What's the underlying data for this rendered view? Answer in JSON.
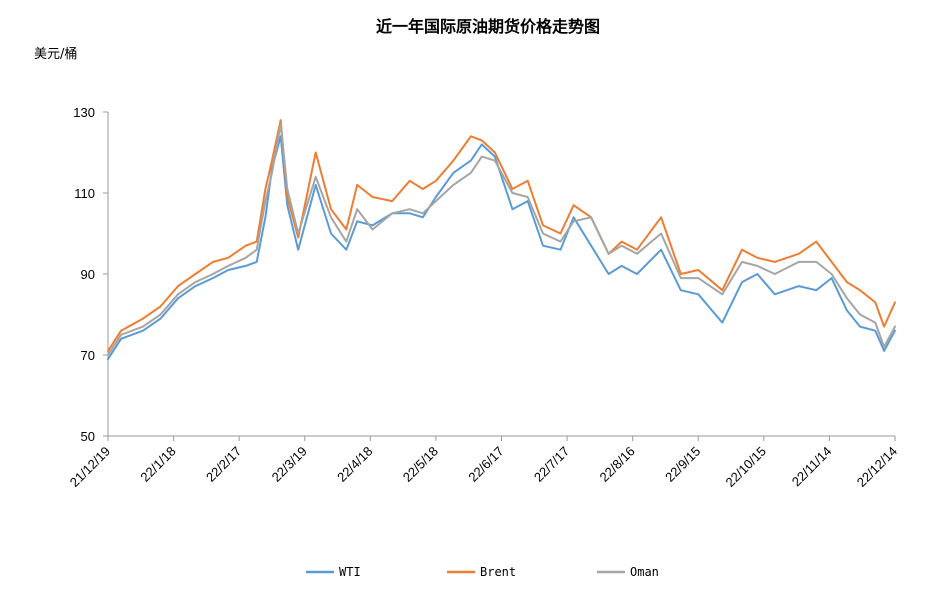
{
  "chart_data": {
    "type": "line",
    "title": "近一年国际原油期货价格走势图",
    "ylabel": "美元/桶",
    "xlabel": "",
    "ylim": [
      50,
      130
    ],
    "yticks": [
      50,
      70,
      90,
      110,
      130
    ],
    "x_start": "2021-12-19",
    "x_end": "2022-12-14",
    "xtick_labels": [
      "21/12/19",
      "22/1/18",
      "22/2/17",
      "22/3/19",
      "22/4/18",
      "22/5/18",
      "22/6/17",
      "22/7/17",
      "22/8/16",
      "22/9/15",
      "22/10/15",
      "22/11/14",
      "22/12/14"
    ],
    "grid": false,
    "legend_position": "bottom",
    "series": [
      {
        "name": "WTI",
        "color": "#5B9BD5",
        "x": [
          "2021-12-19",
          "2021-12-25",
          "2022-01-04",
          "2022-01-12",
          "2022-01-20",
          "2022-01-28",
          "2022-02-05",
          "2022-02-12",
          "2022-02-20",
          "2022-02-25",
          "2022-03-01",
          "2022-03-04",
          "2022-03-08",
          "2022-03-11",
          "2022-03-16",
          "2022-03-24",
          "2022-03-31",
          "2022-04-07",
          "2022-04-12",
          "2022-04-19",
          "2022-04-28",
          "2022-05-06",
          "2022-05-12",
          "2022-05-18",
          "2022-05-26",
          "2022-06-03",
          "2022-06-08",
          "2022-06-14",
          "2022-06-22",
          "2022-06-29",
          "2022-07-06",
          "2022-07-14",
          "2022-07-20",
          "2022-07-28",
          "2022-08-05",
          "2022-08-11",
          "2022-08-18",
          "2022-08-29",
          "2022-09-07",
          "2022-09-15",
          "2022-09-26",
          "2022-10-05",
          "2022-10-12",
          "2022-10-20",
          "2022-10-31",
          "2022-11-08",
          "2022-11-15",
          "2022-11-22",
          "2022-11-28",
          "2022-12-05",
          "2022-12-09",
          "2022-12-14"
        ],
        "values": [
          69,
          74,
          76,
          79,
          84,
          87,
          89,
          91,
          92,
          93,
          104,
          116,
          124,
          107,
          96,
          112,
          100,
          96,
          103,
          102,
          105,
          105,
          104,
          109,
          115,
          118,
          122,
          119,
          106,
          108,
          97,
          96,
          104,
          97,
          90,
          92,
          90,
          96,
          86,
          85,
          78,
          88,
          90,
          85,
          87,
          86,
          89,
          81,
          77,
          76,
          71,
          76
        ]
      },
      {
        "name": "Brent",
        "color": "#ED7D31",
        "x": [
          "2021-12-19",
          "2021-12-25",
          "2022-01-04",
          "2022-01-12",
          "2022-01-20",
          "2022-01-28",
          "2022-02-05",
          "2022-02-12",
          "2022-02-20",
          "2022-02-25",
          "2022-03-01",
          "2022-03-04",
          "2022-03-08",
          "2022-03-11",
          "2022-03-16",
          "2022-03-24",
          "2022-03-31",
          "2022-04-07",
          "2022-04-12",
          "2022-04-19",
          "2022-04-28",
          "2022-05-06",
          "2022-05-12",
          "2022-05-18",
          "2022-05-26",
          "2022-06-03",
          "2022-06-08",
          "2022-06-14",
          "2022-06-22",
          "2022-06-29",
          "2022-07-06",
          "2022-07-14",
          "2022-07-20",
          "2022-07-28",
          "2022-08-05",
          "2022-08-11",
          "2022-08-18",
          "2022-08-29",
          "2022-09-07",
          "2022-09-15",
          "2022-09-26",
          "2022-10-05",
          "2022-10-12",
          "2022-10-20",
          "2022-10-31",
          "2022-11-08",
          "2022-11-15",
          "2022-11-22",
          "2022-11-28",
          "2022-12-05",
          "2022-12-09",
          "2022-12-14"
        ],
        "values": [
          71,
          76,
          79,
          82,
          87,
          90,
          93,
          94,
          97,
          98,
          111,
          118,
          128,
          109,
          99,
          120,
          106,
          101,
          112,
          109,
          108,
          113,
          111,
          113,
          118,
          124,
          123,
          120,
          111,
          113,
          102,
          100,
          107,
          104,
          95,
          98,
          96,
          104,
          90,
          91,
          86,
          96,
          94,
          93,
          95,
          98,
          93,
          88,
          86,
          83,
          77,
          83
        ]
      },
      {
        "name": "Oman",
        "color": "#A5A5A5",
        "x": [
          "2021-12-19",
          "2021-12-25",
          "2022-01-04",
          "2022-01-12",
          "2022-01-20",
          "2022-01-28",
          "2022-02-05",
          "2022-02-12",
          "2022-02-20",
          "2022-02-25",
          "2022-03-01",
          "2022-03-04",
          "2022-03-08",
          "2022-03-11",
          "2022-03-16",
          "2022-03-24",
          "2022-03-31",
          "2022-04-07",
          "2022-04-12",
          "2022-04-19",
          "2022-04-28",
          "2022-05-06",
          "2022-05-12",
          "2022-05-18",
          "2022-05-26",
          "2022-06-03",
          "2022-06-08",
          "2022-06-14",
          "2022-06-22",
          "2022-06-29",
          "2022-07-06",
          "2022-07-14",
          "2022-07-20",
          "2022-07-28",
          "2022-08-05",
          "2022-08-11",
          "2022-08-18",
          "2022-08-29",
          "2022-09-07",
          "2022-09-15",
          "2022-09-26",
          "2022-10-05",
          "2022-10-12",
          "2022-10-20",
          "2022-10-31",
          "2022-11-08",
          "2022-11-15",
          "2022-11-22",
          "2022-11-28",
          "2022-12-05",
          "2022-12-09",
          "2022-12-14"
        ],
        "values": [
          70,
          75,
          77,
          80,
          85,
          88,
          90,
          92,
          94,
          96,
          108,
          115,
          127,
          111,
          100,
          114,
          104,
          98,
          106,
          101,
          105,
          106,
          105,
          108,
          112,
          115,
          119,
          118,
          110,
          109,
          100,
          98,
          103,
          104,
          95,
          97,
          95,
          100,
          89,
          89,
          85,
          93,
          92,
          90,
          93,
          93,
          90,
          84,
          80,
          78,
          72,
          77
        ]
      }
    ]
  }
}
